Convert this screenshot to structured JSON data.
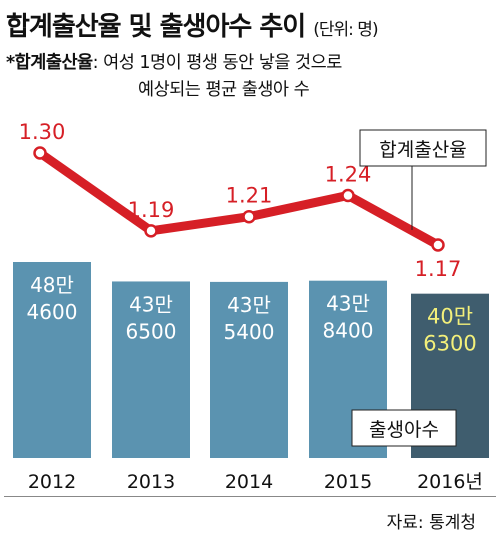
{
  "title": "합계출산율 및 출생아수 추이",
  "unit": "(단위: 명)",
  "note": {
    "term": "*합계출산율",
    "line1": ": 여성 1명이 평생 동안 낳을 것으로",
    "line2": "예상되는 평균 출생아 수"
  },
  "source": "자료: 통계청",
  "colors": {
    "bar": "#5b93b0",
    "bar_highlight": "#3f5d6e",
    "line": "#d61f26",
    "highlight_text": "#f3f07a",
    "bar_text": "#ffffff"
  },
  "chart_data": {
    "type": "bar+line",
    "categories": [
      "2012",
      "2013",
      "2014",
      "2015",
      "2016년"
    ],
    "series": [
      {
        "name": "출생아수",
        "type": "bar",
        "values": [
          484600,
          436500,
          435400,
          438400,
          406300
        ],
        "labels": [
          [
            "48만",
            "4600"
          ],
          [
            "43만",
            "6500"
          ],
          [
            "43만",
            "5400"
          ],
          [
            "43만",
            "8400"
          ],
          [
            "40만",
            "6300"
          ]
        ]
      },
      {
        "name": "합계출산율",
        "type": "line",
        "values": [
          1.3,
          1.19,
          1.21,
          1.24,
          1.17
        ],
        "labels": [
          "1.30",
          "1.19",
          "1.21",
          "1.24",
          "1.17"
        ]
      }
    ],
    "highlight_index": 4,
    "grid": false
  }
}
